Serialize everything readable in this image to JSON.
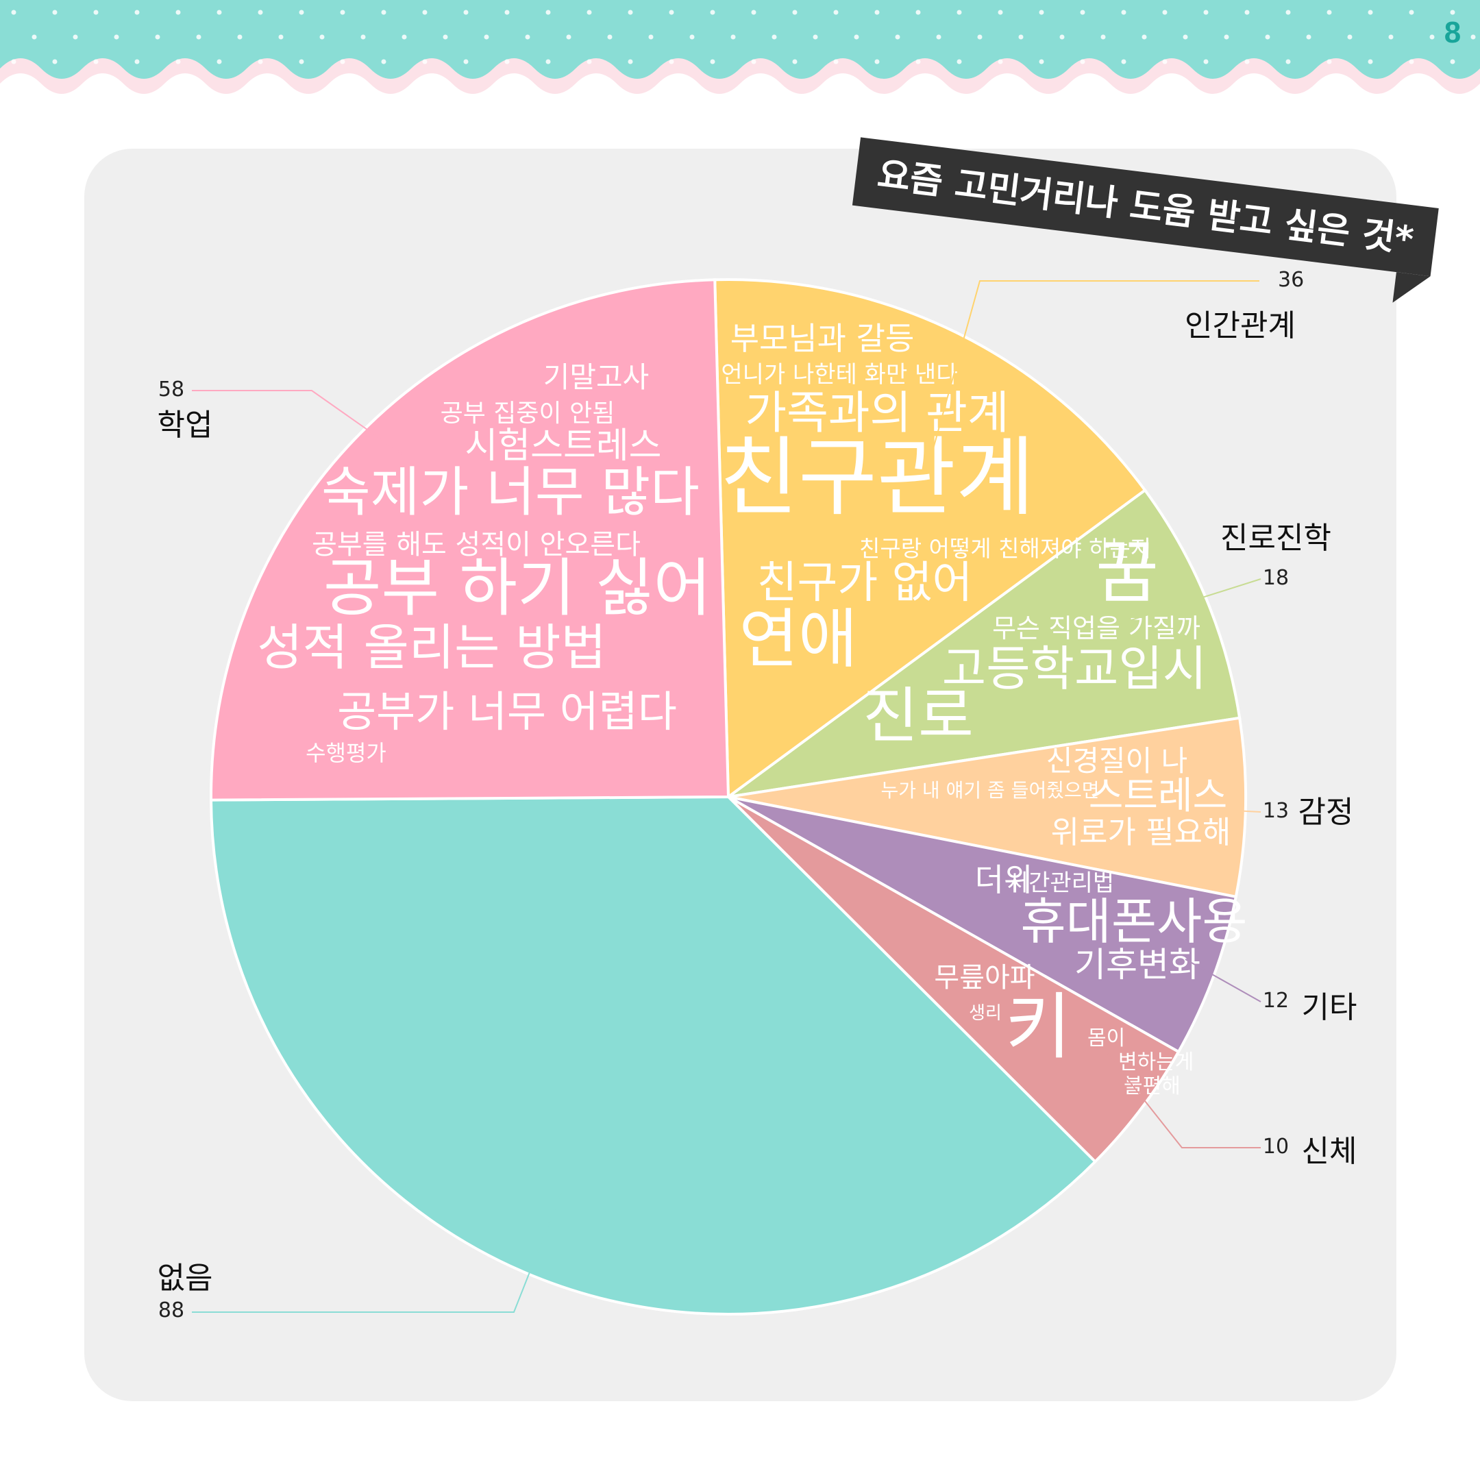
{
  "page_number": "8",
  "chart_data": {
    "type": "pie",
    "title": "요즘 고민거리나 도움 받고 싶은 것*",
    "slices": [
      {
        "label": "인간관계",
        "value": 36,
        "color": "#FFD36E",
        "words": [
          "부모님과 갈등",
          "언니가 나한테 화만 낸다",
          "가족과의 관계",
          "친구관계",
          "친구랑 어떻게 친해져야 하는지",
          "친구가 없어",
          "연애"
        ]
      },
      {
        "label": "진로진학",
        "value": 18,
        "color": "#C8DC93",
        "words": [
          "꿈",
          "무슨 직업을 가질까",
          "고등학교입시",
          "진로"
        ]
      },
      {
        "label": "감정",
        "value": 13,
        "color": "#FFD19E",
        "words": [
          "신경질이 나",
          "누가 내 얘기 좀 들어줬으면",
          "스트레스",
          "위로가 필요해"
        ]
      },
      {
        "label": "기타",
        "value": 12,
        "color": "#AE8DBA",
        "words": [
          "더위",
          "시간관리법",
          "휴대폰사용",
          "기후변화"
        ]
      },
      {
        "label": "신체",
        "value": 10,
        "color": "#E49A9C",
        "words": [
          "무릎아파",
          "생리",
          "키",
          "몸이",
          "변하는게",
          "불편해"
        ]
      },
      {
        "label": "없음",
        "value": 88,
        "color": "#8ADDD5",
        "words": []
      },
      {
        "label": "학업",
        "value": 58,
        "color": "#FFA9C1",
        "words": [
          "기말고사",
          "공부 집중이 안됨",
          "시험스트레스",
          "숙제가 너무 많다",
          "공부를 해도 성적이 안오른다",
          "공부 하기 싫어",
          "성적 올리는 방법",
          "공부가 너무 어렵다",
          "수행평가"
        ]
      }
    ]
  }
}
